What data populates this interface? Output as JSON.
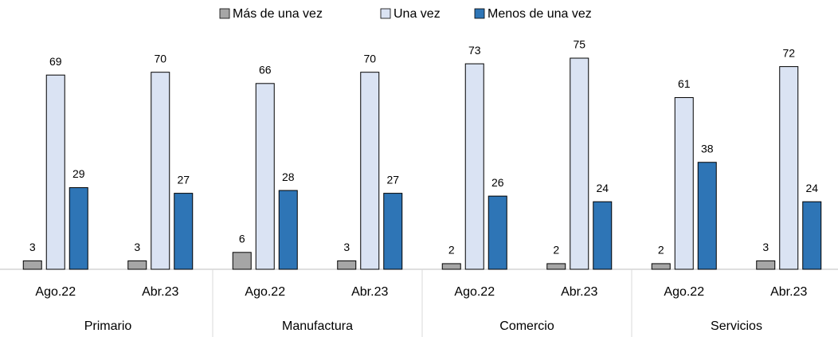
{
  "chart_data": {
    "type": "bar",
    "categories": [
      "Ago.22",
      "Abr.23",
      "Ago.22",
      "Abr.23",
      "Ago.22",
      "Abr.23",
      "Ago.22",
      "Abr.23"
    ],
    "groups": [
      "Primario",
      "Manufactura",
      "Comercio",
      "Servicios"
    ],
    "series": [
      {
        "name": "Más de una vez",
        "color": "#a6a6a6",
        "values": [
          3,
          3,
          6,
          3,
          2,
          2,
          2,
          3
        ]
      },
      {
        "name": "Una vez",
        "color": "#dae3f3",
        "values": [
          69,
          70,
          66,
          70,
          73,
          75,
          61,
          72
        ]
      },
      {
        "name": "Menos de una vez",
        "color": "#2e75b6",
        "values": [
          29,
          27,
          28,
          27,
          26,
          24,
          38,
          24
        ]
      }
    ],
    "legend": "top"
  }
}
